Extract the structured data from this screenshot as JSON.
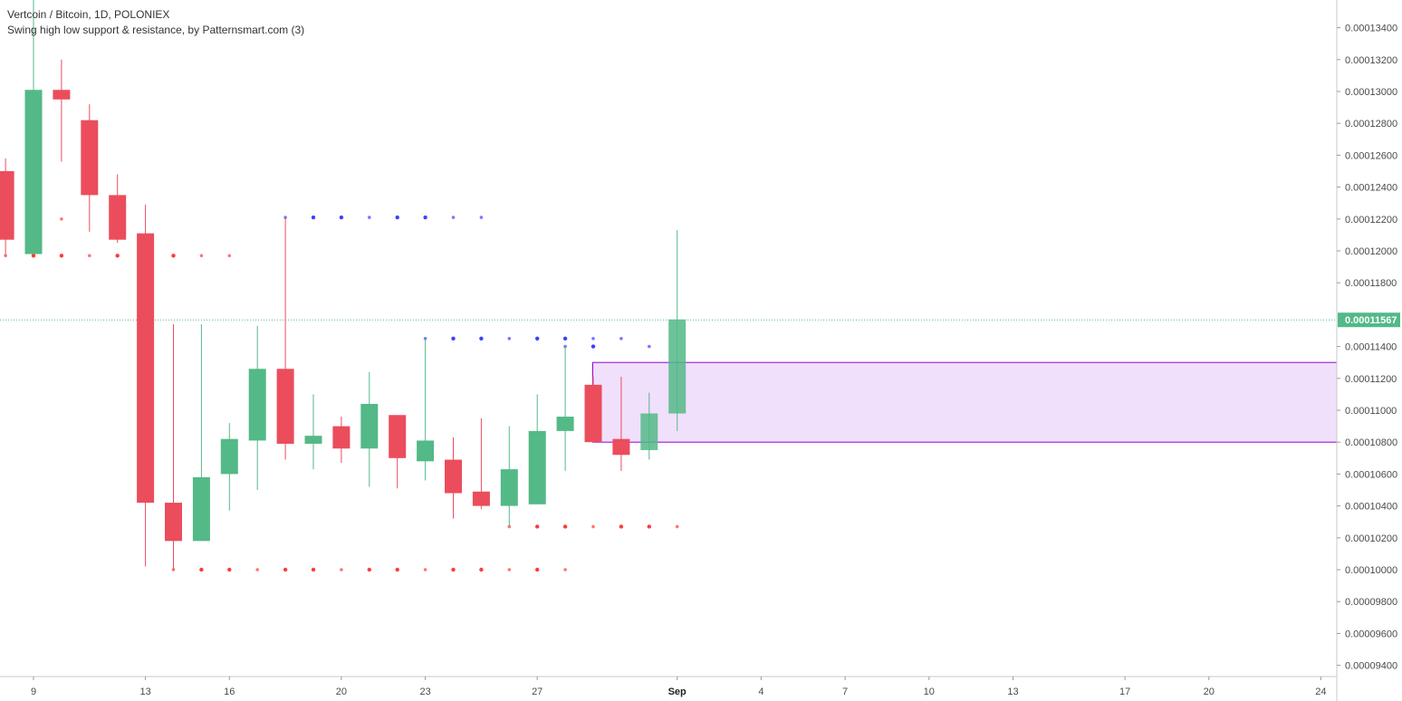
{
  "header": {
    "title": "Vertcoin / Bitcoin, 1D, POLONIEX",
    "indicator": "Swing high low support & resistance, by Patternsmart.com (3)"
  },
  "colors": {
    "up": "#53b987",
    "down": "#eb4d5c",
    "resistance": "#3f3fff",
    "support": "#ff3a3a",
    "zone_fill": "#f0e0fc",
    "zone_border": "#9400d3",
    "last_price": "#53b987"
  },
  "chart_data": {
    "type": "candlestick",
    "y_axis": {
      "min": 9.3e-05,
      "max": 0.000136,
      "ticks": [
        "0.00013400",
        "0.00013200",
        "0.00013000",
        "0.00012800",
        "0.00012600",
        "0.00012400",
        "0.00012200",
        "0.00012000",
        "0.00011800",
        "0.00011400",
        "0.00011200",
        "0.00011000",
        "0.00010800",
        "0.00010600",
        "0.00010400",
        "0.00010200",
        "0.00010000",
        "0.00009800",
        "0.00009600",
        "0.00009400"
      ]
    },
    "x_axis": {
      "labels": [
        {
          "label": "9",
          "day": 9,
          "bold": false
        },
        {
          "label": "13",
          "day": 13,
          "bold": false
        },
        {
          "label": "16",
          "day": 16,
          "bold": false
        },
        {
          "label": "20",
          "day": 20,
          "bold": false
        },
        {
          "label": "23",
          "day": 23,
          "bold": false
        },
        {
          "label": "27",
          "day": 27,
          "bold": false
        },
        {
          "label": "Sep",
          "day": 32,
          "bold": true
        },
        {
          "label": "4",
          "day": 35,
          "bold": false
        },
        {
          "label": "7",
          "day": 38,
          "bold": false
        },
        {
          "label": "10",
          "day": 41,
          "bold": false
        },
        {
          "label": "13",
          "day": 44,
          "bold": false
        },
        {
          "label": "17",
          "day": 48,
          "bold": false
        },
        {
          "label": "20",
          "day": 51,
          "bold": false
        },
        {
          "label": "24",
          "day": 55,
          "bold": false
        }
      ]
    },
    "candles": [
      {
        "day": 8,
        "open": 0.000125,
        "high": 0.0001258,
        "low": 0.0001197,
        "close": 0.0001207
      },
      {
        "day": 9,
        "open": 0.0001198,
        "high": 0.000136,
        "low": 0.0001198,
        "close": 0.0001301
      },
      {
        "day": 10,
        "open": 0.0001301,
        "high": 0.000132,
        "low": 0.0001256,
        "close": 0.0001295
      },
      {
        "day": 11,
        "open": 0.0001282,
        "high": 0.0001292,
        "low": 0.0001212,
        "close": 0.0001235
      },
      {
        "day": 12,
        "open": 0.0001235,
        "high": 0.0001248,
        "low": 0.0001205,
        "close": 0.0001207
      },
      {
        "day": 13,
        "open": 0.0001211,
        "high": 0.0001229,
        "low": 0.0001002,
        "close": 0.0001042
      },
      {
        "day": 14,
        "open": 0.0001042,
        "high": 0.0001154,
        "low": 0.0001,
        "close": 0.0001018
      },
      {
        "day": 15,
        "open": 0.0001018,
        "high": 0.0001154,
        "low": 0.0001018,
        "close": 0.0001058
      },
      {
        "day": 16,
        "open": 0.000106,
        "high": 0.0001092,
        "low": 0.0001037,
        "close": 0.0001082
      },
      {
        "day": 17,
        "open": 0.0001081,
        "high": 0.0001153,
        "low": 0.000105,
        "close": 0.0001126
      },
      {
        "day": 18,
        "open": 0.0001126,
        "high": 0.0001221,
        "low": 0.0001069,
        "close": 0.0001079
      },
      {
        "day": 19,
        "open": 0.0001079,
        "high": 0.000111,
        "low": 0.0001063,
        "close": 0.0001084
      },
      {
        "day": 20,
        "open": 0.000109,
        "high": 0.0001096,
        "low": 0.0001067,
        "close": 0.0001076
      },
      {
        "day": 21,
        "open": 0.0001076,
        "high": 0.0001124,
        "low": 0.0001052,
        "close": 0.0001104
      },
      {
        "day": 22,
        "open": 0.0001097,
        "high": 0.0001097,
        "low": 0.0001051,
        "close": 0.000107
      },
      {
        "day": 23,
        "open": 0.0001068,
        "high": 0.0001145,
        "low": 0.0001056,
        "close": 0.0001081
      },
      {
        "day": 24,
        "open": 0.0001069,
        "high": 0.0001083,
        "low": 0.0001032,
        "close": 0.0001048
      },
      {
        "day": 25,
        "open": 0.0001049,
        "high": 0.0001095,
        "low": 0.0001038,
        "close": 0.000104
      },
      {
        "day": 26,
        "open": 0.000104,
        "high": 0.000109,
        "low": 0.0001027,
        "close": 0.0001063
      },
      {
        "day": 27,
        "open": 0.0001041,
        "high": 0.000111,
        "low": 0.0001041,
        "close": 0.0001087
      },
      {
        "day": 28,
        "open": 0.0001087,
        "high": 0.000114,
        "low": 0.0001062,
        "close": 0.0001096
      },
      {
        "day": 29,
        "open": 0.0001116,
        "high": 0.0001121,
        "low": 0.000108,
        "close": 0.000108
      },
      {
        "day": 30,
        "open": 0.0001082,
        "high": 0.0001121,
        "low": 0.0001062,
        "close": 0.0001072
      },
      {
        "day": 31,
        "open": 0.0001075,
        "high": 0.0001111,
        "low": 0.0001069,
        "close": 0.0001098
      },
      {
        "day": 32,
        "open": 0.0001098,
        "high": 0.0001213,
        "low": 0.0001087,
        "close": 0.0001157
      }
    ],
    "resistance_dots": [
      {
        "value": 0.0001221,
        "days": [
          18,
          19,
          20,
          21,
          22,
          23,
          24,
          25
        ]
      },
      {
        "value": 0.0001145,
        "days": [
          23,
          24,
          25,
          26,
          27,
          28,
          29,
          30
        ]
      },
      {
        "value": 0.000114,
        "days": [
          28,
          29,
          31
        ]
      }
    ],
    "support_dots": [
      {
        "value": 0.0001197,
        "days": [
          8,
          9,
          10,
          11,
          12,
          14,
          15,
          16
        ]
      },
      {
        "value": 0.000122,
        "days": [
          10
        ]
      },
      {
        "value": 0.0001,
        "days": [
          14,
          15,
          16,
          17,
          18,
          19,
          20,
          21,
          22,
          23,
          24,
          25,
          26,
          27,
          28
        ]
      },
      {
        "value": 0.0001027,
        "days": [
          26,
          27,
          28,
          29,
          30,
          31,
          32
        ]
      }
    ],
    "zone": {
      "from_day": 29,
      "to_day": 56,
      "top": 0.000113,
      "bottom": 0.000108
    },
    "last_price": {
      "value": 0.00011567,
      "label": "0.00011567"
    }
  }
}
